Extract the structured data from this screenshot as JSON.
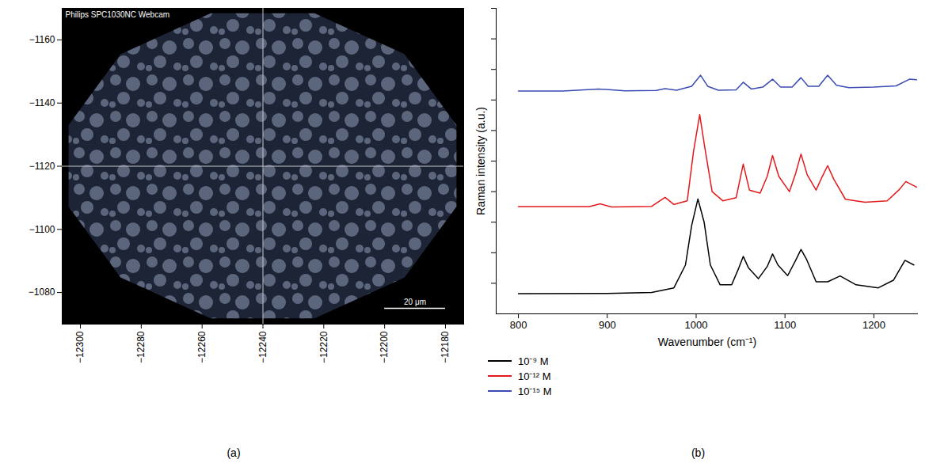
{
  "chart_data": [
    {
      "type": "image",
      "panel_label": "(a)",
      "annotation": "Philips SPC1030NC Webcam",
      "xlim": [
        -12306,
        -12174
      ],
      "xticks": [
        -12300,
        -12280,
        -12260,
        -12240,
        -12220,
        -12200,
        -12180
      ],
      "ylim": [
        -1070,
        -1170
      ],
      "yticks": [
        -1160,
        -1140,
        -1120,
        -1100,
        -1080
      ],
      "crosshair": {
        "x": -12240,
        "y": -1120
      },
      "scale_bar": {
        "label": "20 μm",
        "x": -12200,
        "length": 20,
        "y": -1075
      }
    },
    {
      "type": "line",
      "panel_label": "(b)",
      "x_label": "Wavenumber (cm⁻¹)",
      "y_label": "Raman intensity (a.u.)",
      "xlim": [
        775,
        1250
      ],
      "xticks": [
        800,
        900,
        1000,
        1100,
        1200
      ],
      "ylim": [
        0,
        10
      ],
      "yticks": [
        1,
        2,
        3,
        4,
        5,
        6,
        7,
        8,
        9,
        10
      ],
      "tick_labels": "x",
      "legend": "bottom",
      "series": [
        {
          "name": "10⁻⁹ M",
          "color": "#000000",
          "x": [
            800,
            900,
            950,
            975,
            988,
            995,
            1002,
            1009,
            1016,
            1027,
            1040,
            1048,
            1053,
            1059,
            1070,
            1080,
            1086,
            1092,
            1103,
            1112,
            1118,
            1124,
            1135,
            1148,
            1162,
            1180,
            1205,
            1222,
            1235,
            1245
          ],
          "values": [
            0.66,
            0.67,
            0.7,
            0.85,
            1.6,
            2.9,
            3.76,
            3.0,
            1.6,
            0.95,
            0.95,
            1.5,
            1.88,
            1.5,
            1.15,
            1.55,
            1.96,
            1.6,
            1.25,
            1.75,
            2.11,
            1.8,
            1.05,
            1.05,
            1.24,
            0.95,
            0.85,
            1.1,
            1.75,
            1.6
          ]
        },
        {
          "name": "10⁻¹² M",
          "color": "#e3191c",
          "x": [
            800,
            880,
            892,
            905,
            950,
            965,
            975,
            990,
            997,
            1004,
            1010,
            1018,
            1030,
            1045,
            1053,
            1060,
            1072,
            1080,
            1086,
            1093,
            1105,
            1112,
            1118,
            1125,
            1135,
            1142,
            1148,
            1155,
            1168,
            1190,
            1215,
            1228,
            1236,
            1248
          ],
          "values": [
            3.51,
            3.51,
            3.6,
            3.5,
            3.52,
            3.81,
            3.58,
            3.7,
            5.3,
            6.52,
            5.4,
            4.0,
            3.7,
            3.8,
            4.9,
            4.05,
            3.95,
            4.5,
            5.18,
            4.5,
            4.0,
            4.6,
            5.23,
            4.55,
            4.05,
            4.5,
            4.85,
            4.4,
            3.75,
            3.65,
            3.7,
            4.05,
            4.33,
            4.15
          ]
        },
        {
          "name": "10⁻¹⁵ M",
          "color": "#3a4bb4",
          "x": [
            800,
            850,
            890,
            920,
            955,
            965,
            978,
            995,
            1005,
            1013,
            1025,
            1045,
            1053,
            1062,
            1075,
            1086,
            1095,
            1108,
            1118,
            1126,
            1138,
            1148,
            1158,
            1172,
            1200,
            1225,
            1240,
            1248
          ],
          "values": [
            7.29,
            7.29,
            7.36,
            7.3,
            7.31,
            7.37,
            7.32,
            7.45,
            7.81,
            7.45,
            7.32,
            7.33,
            7.58,
            7.36,
            7.42,
            7.68,
            7.42,
            7.42,
            7.73,
            7.45,
            7.45,
            7.81,
            7.48,
            7.4,
            7.42,
            7.46,
            7.68,
            7.66
          ]
        }
      ]
    }
  ]
}
